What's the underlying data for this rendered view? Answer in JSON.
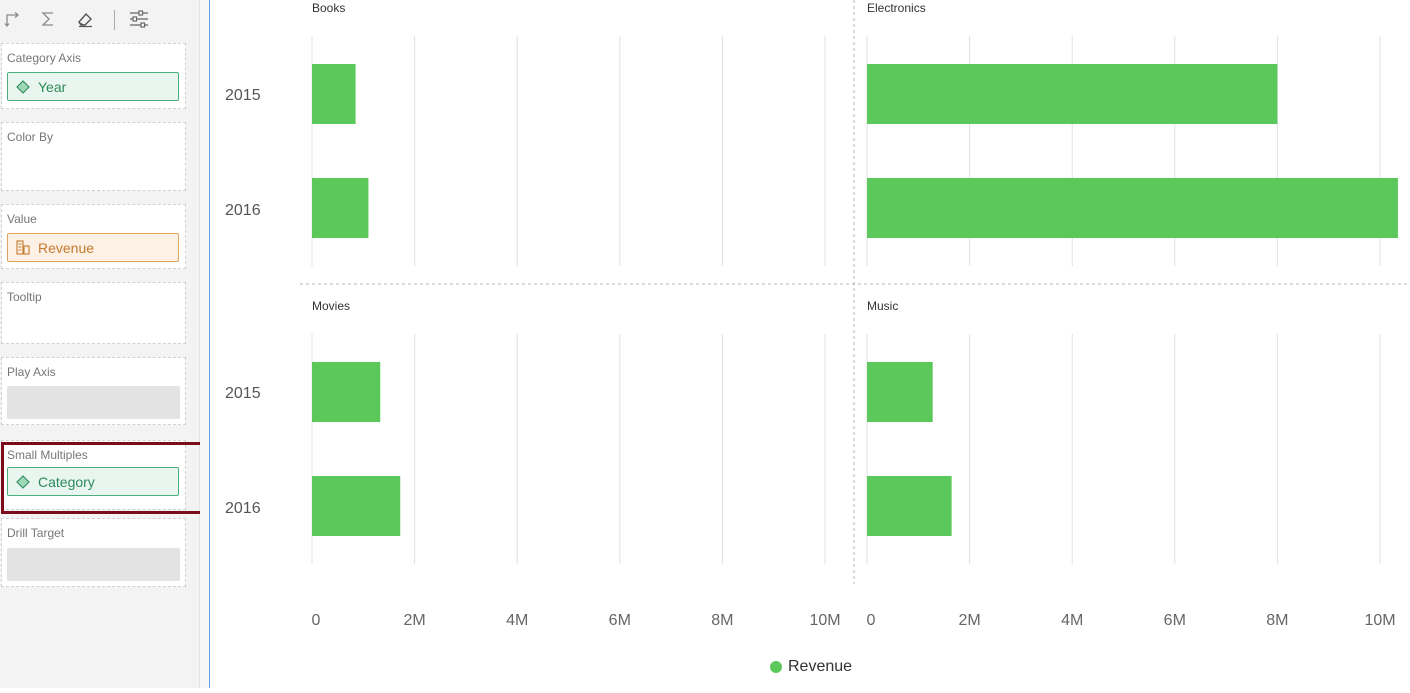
{
  "toolbar": {
    "icons": [
      "swap-axes-icon",
      "sigma-icon",
      "eraser-icon",
      "settings-sliders-icon"
    ]
  },
  "wells": {
    "category_axis": {
      "label": "Category Axis",
      "chip": "Year"
    },
    "color_by": {
      "label": "Color By"
    },
    "value": {
      "label": "Value",
      "chip": "Revenue"
    },
    "tooltip": {
      "label": "Tooltip"
    },
    "play_axis": {
      "label": "Play Axis"
    },
    "small_multiples": {
      "label": "Small Multiples",
      "chip": "Category"
    },
    "drill_target": {
      "label": "Drill Target"
    }
  },
  "colors": {
    "bar": "#5bc85b",
    "dimension": "#2e8a5c",
    "measure": "#c57a2e",
    "highlight": "#7b0c1b"
  },
  "chart_data": {
    "type": "bar",
    "orientation": "horizontal",
    "categories": [
      "2015",
      "2016"
    ],
    "panels": [
      {
        "title": "Books",
        "values": [
          850000,
          1100000
        ]
      },
      {
        "title": "Electronics",
        "values": [
          8000000,
          10350000
        ]
      },
      {
        "title": "Movies",
        "values": [
          1330000,
          1720000
        ]
      },
      {
        "title": "Music",
        "values": [
          1280000,
          1650000
        ]
      }
    ],
    "xticks": [
      "0",
      "2M",
      "4M",
      "6M",
      "8M",
      "10M"
    ],
    "xlim": [
      0,
      10000000
    ],
    "grid": true,
    "legend": {
      "position": "bottom",
      "series": "Revenue"
    }
  }
}
